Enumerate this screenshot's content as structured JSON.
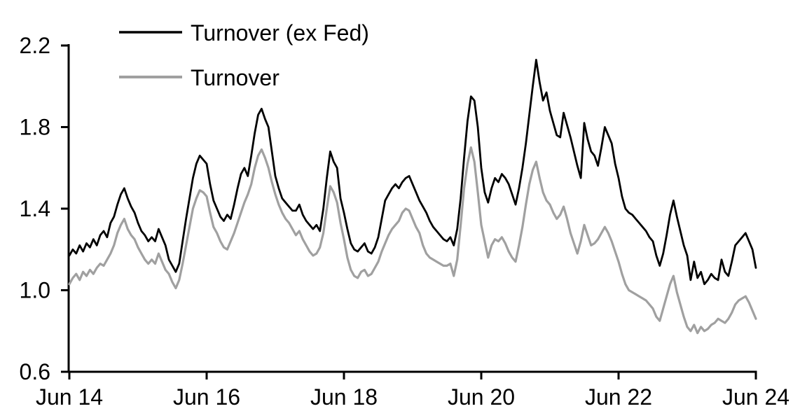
{
  "chart_data": {
    "type": "line",
    "title": "",
    "legend": {
      "position": "top-left-inside",
      "entries": [
        "Turnover (ex Fed)",
        "Turnover"
      ]
    },
    "x_axis": {
      "label": "",
      "tick_labels": [
        "Jun 14",
        "Jun 16",
        "Jun 18",
        "Jun 20",
        "Jun 22",
        "Jun 24"
      ],
      "tick_years": [
        0,
        2,
        4,
        6,
        8,
        10
      ],
      "range_years": [
        0,
        10
      ],
      "unit": "June of each year, 2014-2024"
    },
    "y_axis": {
      "label": "",
      "tick_labels": [
        "0.6",
        "1.0",
        "1.4",
        "1.8",
        "2.2"
      ],
      "tick_values": [
        0.6,
        1.0,
        1.4,
        1.8,
        2.2
      ],
      "range": [
        0.6,
        2.2
      ],
      "grid": false
    },
    "sampling": {
      "t_start_years": 0,
      "t_step_years": 0.05
    },
    "series": [
      {
        "name": "Turnover (ex Fed)",
        "color": "#000000",
        "stroke_width": 2.8,
        "values": [
          1.17,
          1.2,
          1.18,
          1.22,
          1.19,
          1.23,
          1.21,
          1.25,
          1.22,
          1.27,
          1.29,
          1.26,
          1.33,
          1.36,
          1.42,
          1.47,
          1.5,
          1.45,
          1.41,
          1.38,
          1.33,
          1.29,
          1.27,
          1.24,
          1.26,
          1.24,
          1.3,
          1.26,
          1.22,
          1.15,
          1.12,
          1.09,
          1.13,
          1.24,
          1.35,
          1.45,
          1.55,
          1.62,
          1.66,
          1.64,
          1.62,
          1.52,
          1.44,
          1.4,
          1.36,
          1.34,
          1.37,
          1.35,
          1.42,
          1.5,
          1.57,
          1.6,
          1.56,
          1.66,
          1.77,
          1.86,
          1.89,
          1.84,
          1.8,
          1.68,
          1.56,
          1.5,
          1.45,
          1.43,
          1.41,
          1.39,
          1.39,
          1.42,
          1.37,
          1.34,
          1.32,
          1.3,
          1.32,
          1.29,
          1.4,
          1.55,
          1.68,
          1.63,
          1.6,
          1.45,
          1.38,
          1.3,
          1.23,
          1.2,
          1.19,
          1.21,
          1.23,
          1.19,
          1.18,
          1.21,
          1.26,
          1.35,
          1.44,
          1.47,
          1.5,
          1.52,
          1.5,
          1.53,
          1.55,
          1.56,
          1.52,
          1.48,
          1.44,
          1.41,
          1.38,
          1.34,
          1.31,
          1.29,
          1.27,
          1.25,
          1.24,
          1.26,
          1.22,
          1.3,
          1.45,
          1.65,
          1.83,
          1.95,
          1.93,
          1.8,
          1.6,
          1.48,
          1.43,
          1.5,
          1.55,
          1.53,
          1.57,
          1.55,
          1.52,
          1.47,
          1.42,
          1.5,
          1.6,
          1.72,
          1.86,
          2.0,
          2.13,
          2.02,
          1.93,
          1.97,
          1.88,
          1.82,
          1.76,
          1.75,
          1.87,
          1.81,
          1.75,
          1.68,
          1.61,
          1.55,
          1.82,
          1.74,
          1.68,
          1.66,
          1.61,
          1.7,
          1.8,
          1.76,
          1.72,
          1.62,
          1.55,
          1.46,
          1.4,
          1.38,
          1.37,
          1.35,
          1.33,
          1.31,
          1.29,
          1.26,
          1.24,
          1.17,
          1.12,
          1.18,
          1.27,
          1.37,
          1.44,
          1.36,
          1.29,
          1.22,
          1.17,
          1.05,
          1.14,
          1.06,
          1.09,
          1.03,
          1.05,
          1.08,
          1.06,
          1.05,
          1.15,
          1.09,
          1.07,
          1.14,
          1.22,
          1.24,
          1.26,
          1.28,
          1.24,
          1.2,
          1.11
        ]
      },
      {
        "name": "Turnover",
        "color": "#A0A0A0",
        "stroke_width": 3.2,
        "values": [
          1.03,
          1.06,
          1.08,
          1.05,
          1.09,
          1.07,
          1.1,
          1.08,
          1.11,
          1.13,
          1.12,
          1.15,
          1.18,
          1.22,
          1.28,
          1.32,
          1.35,
          1.3,
          1.27,
          1.25,
          1.21,
          1.18,
          1.15,
          1.13,
          1.15,
          1.13,
          1.18,
          1.14,
          1.1,
          1.08,
          1.04,
          1.01,
          1.05,
          1.13,
          1.22,
          1.31,
          1.4,
          1.45,
          1.49,
          1.48,
          1.46,
          1.38,
          1.31,
          1.28,
          1.24,
          1.21,
          1.2,
          1.24,
          1.28,
          1.33,
          1.38,
          1.43,
          1.47,
          1.52,
          1.6,
          1.66,
          1.69,
          1.65,
          1.6,
          1.53,
          1.47,
          1.42,
          1.38,
          1.35,
          1.33,
          1.3,
          1.27,
          1.29,
          1.25,
          1.22,
          1.19,
          1.17,
          1.18,
          1.21,
          1.28,
          1.4,
          1.51,
          1.48,
          1.43,
          1.33,
          1.25,
          1.16,
          1.1,
          1.07,
          1.06,
          1.09,
          1.1,
          1.07,
          1.08,
          1.11,
          1.14,
          1.19,
          1.23,
          1.27,
          1.3,
          1.32,
          1.34,
          1.38,
          1.4,
          1.39,
          1.35,
          1.31,
          1.28,
          1.22,
          1.18,
          1.16,
          1.15,
          1.14,
          1.13,
          1.12,
          1.12,
          1.13,
          1.07,
          1.15,
          1.32,
          1.5,
          1.62,
          1.7,
          1.63,
          1.48,
          1.32,
          1.24,
          1.16,
          1.22,
          1.25,
          1.24,
          1.26,
          1.23,
          1.19,
          1.16,
          1.14,
          1.22,
          1.31,
          1.42,
          1.52,
          1.59,
          1.63,
          1.55,
          1.48,
          1.44,
          1.42,
          1.38,
          1.35,
          1.37,
          1.41,
          1.35,
          1.28,
          1.23,
          1.18,
          1.24,
          1.32,
          1.27,
          1.22,
          1.23,
          1.25,
          1.28,
          1.31,
          1.28,
          1.24,
          1.19,
          1.14,
          1.08,
          1.03,
          1.0,
          0.99,
          0.98,
          0.97,
          0.96,
          0.95,
          0.93,
          0.91,
          0.87,
          0.85,
          0.91,
          0.97,
          1.03,
          1.07,
          0.99,
          0.93,
          0.87,
          0.82,
          0.8,
          0.83,
          0.79,
          0.82,
          0.8,
          0.81,
          0.83,
          0.84,
          0.86,
          0.85,
          0.84,
          0.86,
          0.89,
          0.93,
          0.95,
          0.96,
          0.97,
          0.94,
          0.9,
          0.86
        ]
      }
    ],
    "colors": {
      "axis": "#000000",
      "text": "#000000",
      "background": "#FFFFFF"
    }
  }
}
